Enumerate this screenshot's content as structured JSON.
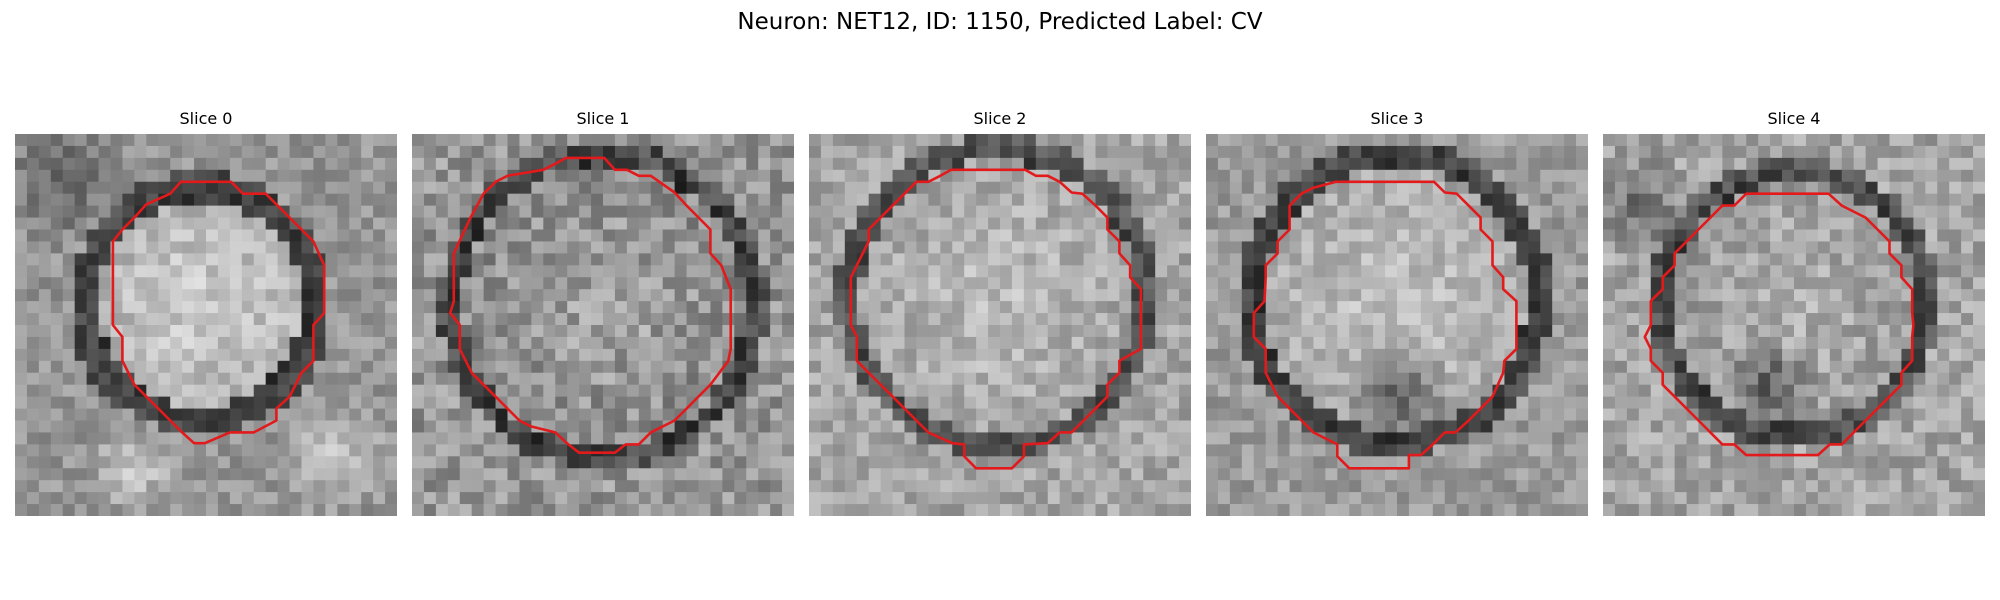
{
  "figure": {
    "title": "Neuron: NET12, ID: 1150, Predicted Label: CV"
  },
  "contour_color": "#e31a1c",
  "colormap": "grayscale",
  "panels": [
    {
      "title": "Slice 0"
    },
    {
      "title": "Slice 1"
    },
    {
      "title": "Slice 2"
    },
    {
      "title": "Slice 3"
    },
    {
      "title": "Slice 4"
    }
  ]
}
